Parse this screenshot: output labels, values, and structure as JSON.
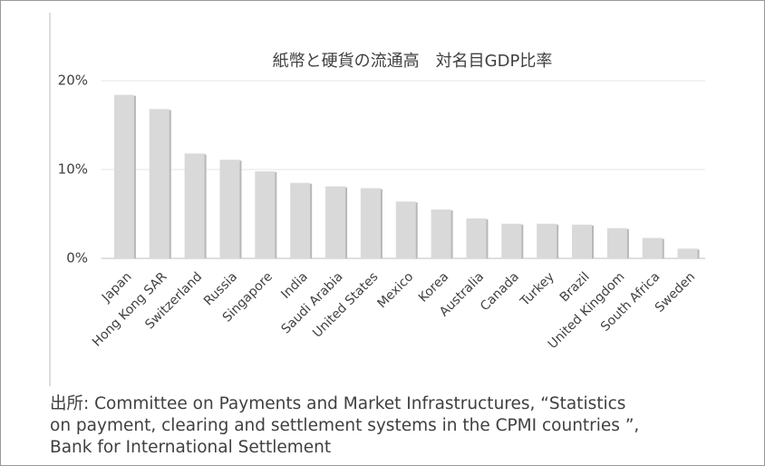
{
  "chart_data": {
    "type": "bar",
    "title": "紙幣と硬貨の流通高　対名目GDP比率",
    "categories": [
      "Japan",
      "Hong Kong SAR",
      "Switzerland",
      "Russia",
      "Singapore",
      "India",
      "Saudi Arabia",
      "United States",
      "Mexico",
      "Korea",
      "Australia",
      "Canada",
      "Turkey",
      "Brazil",
      "United Kingdom",
      "South Africa",
      "Sweden"
    ],
    "values": [
      18.4,
      16.8,
      11.8,
      11.1,
      9.8,
      8.5,
      8.1,
      7.9,
      6.4,
      5.5,
      4.5,
      3.9,
      3.9,
      3.8,
      3.4,
      2.3,
      1.1
    ],
    "color": "#d9d9d9",
    "ylim": [
      0,
      20
    ],
    "yticks": [
      {
        "value": 0,
        "label": "0%"
      },
      {
        "value": 10,
        "label": "10%"
      },
      {
        "value": 20,
        "label": "20%"
      }
    ],
    "grid": true,
    "source": [
      "出所: Committee on Payments and Market Infrastructures, “Statistics",
      "on payment, clearing and settlement systems in the CPMI countries ”,",
      "Bank for International Settlement"
    ]
  }
}
